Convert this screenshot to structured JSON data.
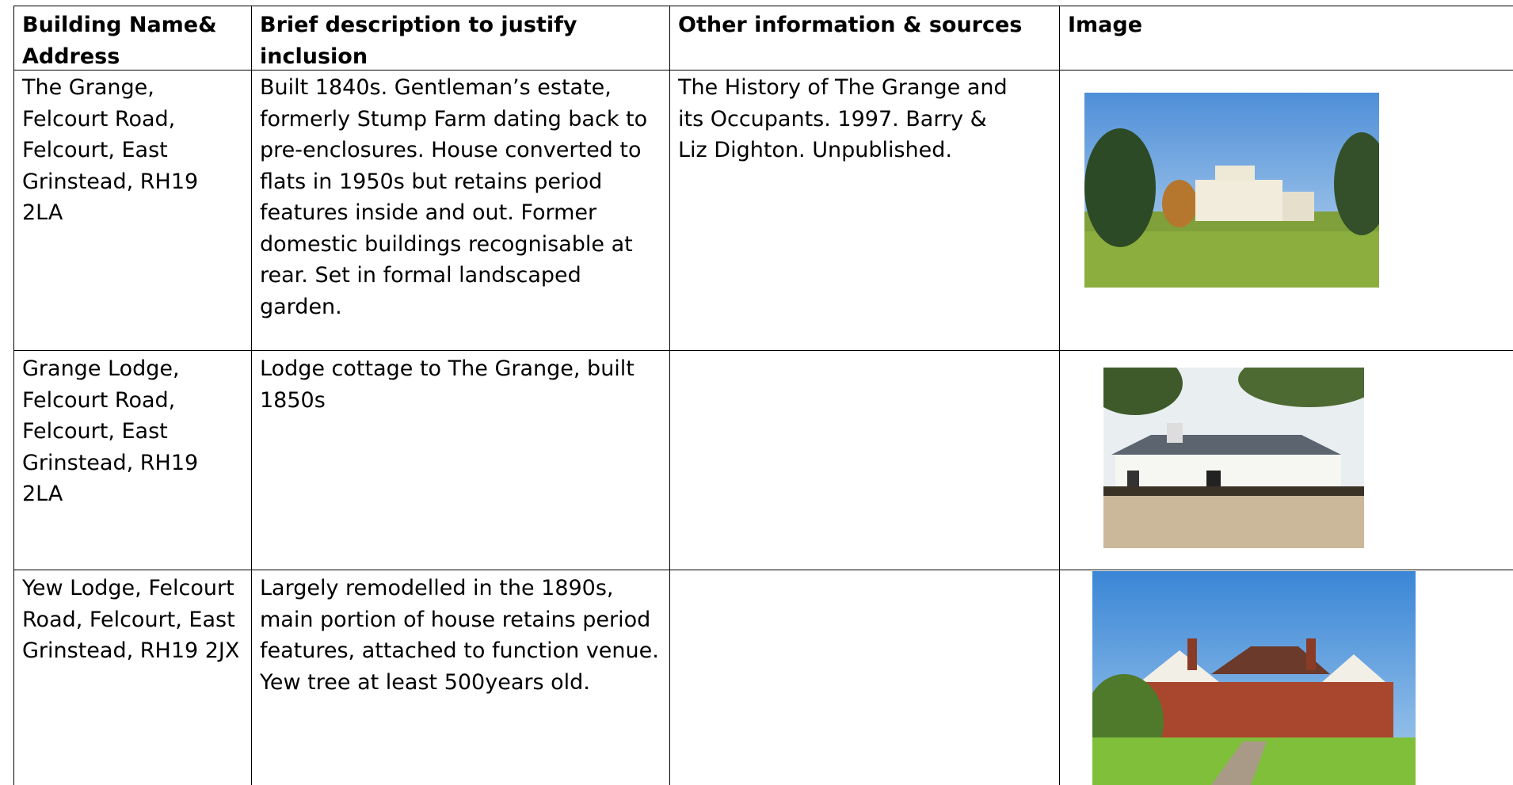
{
  "table": {
    "header": [
      "Building Name& Address",
      "Brief description to justify inclusion",
      "Other information & sources",
      "Image"
    ],
    "rows": [
      {
        "building": "The Grange, Felcourt Road, Felcourt, East Grinstead, RH19 2LA",
        "description": "Built 1840s. Gentleman’s estate, formerly Stump Farm dating back to pre-enclosures. House converted to flats in 1950s but retains period features inside and out. Former domestic buildings recognisable at rear. Set in formal landscaped garden.",
        "sources": "The History of The Grange and its Occupants. 1997. Barry & Liz Dighton. Unpublished."
      },
      {
        "building": "Grange Lodge, Felcourt Road, Felcourt, East Grinstead, RH19 2LA",
        "description": "Lodge cottage to The Grange, built 1850s"
      },
      {
        "building": "Yew Lodge, Felcourt Road, Felcourt, East Grinstead, RH19 2JX",
        "description": "Largely remodelled in the 1890s, main portion of house retains period features, attached to function venue. Yew tree at least 500years old."
      }
    ]
  }
}
